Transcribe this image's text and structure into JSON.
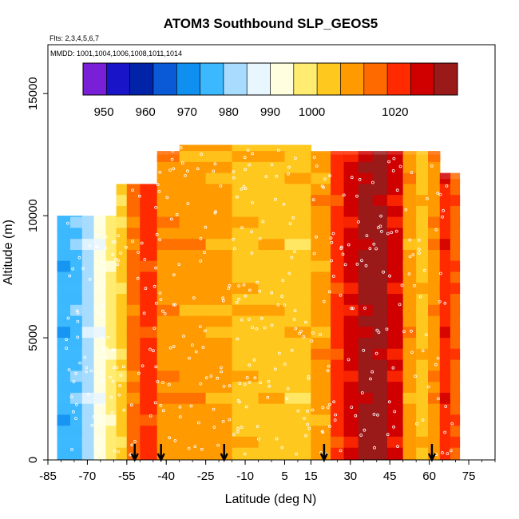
{
  "chart_data": {
    "type": "heatmap",
    "title": "ATOM3 Southbound SLP_GEOS5",
    "flights_text": "Flts: 2,3,4,5,6,7",
    "dates_text": "MMDD: 1001,1004,1006,1008,1011,1014",
    "xlabel": "Latitude (deg N)",
    "ylabel": "Altitude (m)",
    "xlim": [
      -85,
      85
    ],
    "ylim": [
      0,
      17000
    ],
    "x_ticks": [
      -85,
      -70,
      -55,
      -40,
      -25,
      -10,
      5,
      15,
      30,
      45,
      60,
      75
    ],
    "y_ticks": [
      0,
      5000,
      10000,
      15000
    ],
    "colorbar": {
      "range": [
        945,
        1035
      ],
      "tick_values": [
        950,
        960,
        970,
        980,
        990,
        1000,
        1020
      ],
      "colors": [
        "#7a1fd8",
        "#1a14c8",
        "#0023a8",
        "#0a5ad8",
        "#0f8ff0",
        "#3cb8ff",
        "#a8dcff",
        "#e8f6ff",
        "#ffffe0",
        "#ffec70",
        "#ffc81e",
        "#ff9a00",
        "#ff6a00",
        "#ff2a00",
        "#d00000",
        "#9a1a1a"
      ]
    },
    "profiles": [
      {
        "lat": -79,
        "slp": 975
      },
      {
        "lat": -74,
        "slp": 978
      },
      {
        "lat": -70,
        "slp": 983
      },
      {
        "lat": -65,
        "slp": 992
      },
      {
        "lat": -61,
        "slp": 997
      },
      {
        "lat": -57,
        "slp": 1002
      },
      {
        "lat": -53,
        "slp": 1013
      },
      {
        "lat": -47,
        "slp": 1020
      },
      {
        "lat": -40,
        "slp": 1012
      },
      {
        "lat": -30,
        "slp": 1010
      },
      {
        "lat": -20,
        "slp": 1008
      },
      {
        "lat": -10,
        "slp": 1006
      },
      {
        "lat": 0,
        "slp": 1005
      },
      {
        "lat": 10,
        "slp": 1004
      },
      {
        "lat": 20,
        "slp": 1009
      },
      {
        "lat": 25,
        "slp": 1020
      },
      {
        "lat": 30,
        "slp": 1024
      },
      {
        "lat": 36,
        "slp": 1030
      },
      {
        "lat": 41,
        "slp": 1032
      },
      {
        "lat": 47,
        "slp": 1024
      },
      {
        "lat": 53,
        "slp": 1010
      },
      {
        "lat": 57,
        "slp": 1005
      },
      {
        "lat": 62,
        "slp": 1012
      },
      {
        "lat": 66,
        "slp": 1022
      },
      {
        "lat": 70,
        "slp": 1018
      }
    ],
    "arrow_latitudes": [
      -52,
      -42,
      -18,
      20,
      61
    ]
  }
}
